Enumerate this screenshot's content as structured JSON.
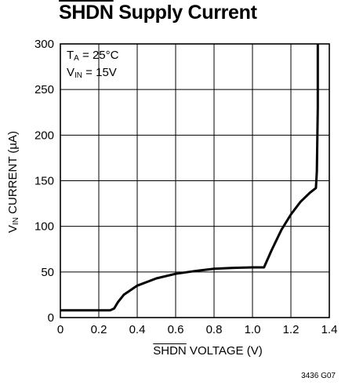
{
  "title": "SHDN Supply Current",
  "title_overline": "SHDN",
  "title_rest": " Supply Current",
  "conditions": {
    "ta_label": "T",
    "ta_sub": "A",
    "ta_value": " = 25°C",
    "vin_label": "V",
    "vin_sub": "IN",
    "vin_value": " = 15V"
  },
  "xlabel_overline": "SHDN",
  "xlabel_rest": " VOLTAGE (V)",
  "ylabel_main": "V",
  "ylabel_sub": "IN",
  "ylabel_rest": " CURRENT (µA)",
  "code": "3436 G07",
  "chart_data": {
    "type": "line",
    "title": "SHDN Supply Current",
    "xlabel": "SHDN VOLTAGE (V)",
    "ylabel": "VIN CURRENT (µA)",
    "xlim": [
      0,
      1.4
    ],
    "ylim": [
      0,
      300
    ],
    "xticks": [
      "0",
      "0.2",
      "0.4",
      "0.6",
      "0.8",
      "1.0",
      "1.2",
      "1.4"
    ],
    "yticks": [
      "0",
      "50",
      "100",
      "150",
      "200",
      "250",
      "300"
    ],
    "grid": true,
    "series": [
      {
        "x": [
          0,
          0.26,
          0.28,
          0.3,
          0.33,
          0.4,
          0.5,
          0.6,
          0.7,
          0.8,
          0.9,
          1.0,
          1.06,
          1.1,
          1.15,
          1.2,
          1.25,
          1.3,
          1.33,
          1.335,
          1.34,
          1.34
        ],
        "y": [
          8,
          8,
          10,
          17,
          25,
          35,
          43,
          48,
          51,
          53.5,
          54.5,
          55,
          55,
          74,
          96,
          113,
          127,
          137,
          142,
          160,
          230,
          300
        ]
      }
    ]
  }
}
